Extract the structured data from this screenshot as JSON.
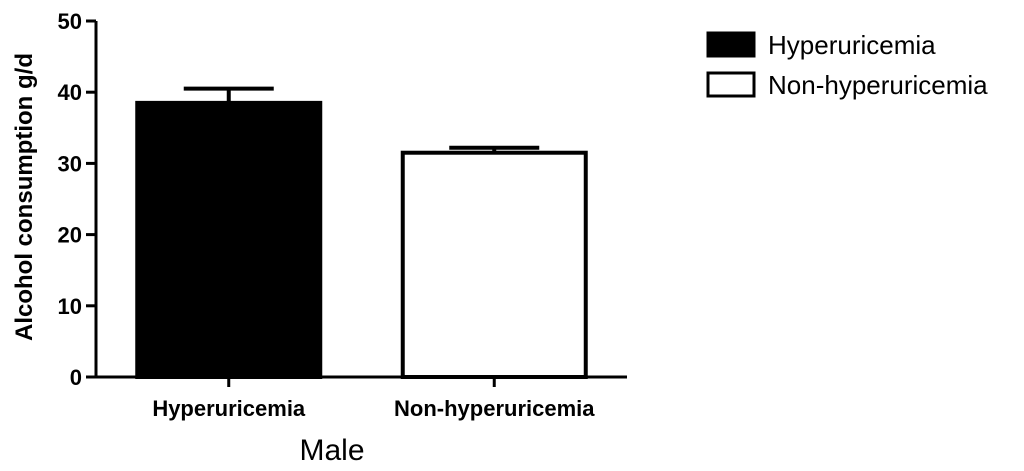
{
  "chart_data": {
    "type": "bar",
    "categories": [
      "Hyperuricemia",
      "Non-hyperuricemia"
    ],
    "values": [
      38.5,
      31.5
    ],
    "error": [
      2.0,
      0.7
    ],
    "fills": [
      "#000000",
      "#ffffff"
    ],
    "ylabel": "Alcohol consumption g/d",
    "xlabel": "Male",
    "ylim": [
      0,
      50
    ],
    "yticks": [
      0,
      10,
      20,
      30,
      40,
      50
    ],
    "legend": {
      "position": "top-right",
      "entries": [
        {
          "label": "Hyperuricemia",
          "fill": "#000000"
        },
        {
          "label": "Non-hyperuricemia",
          "fill": "#ffffff"
        }
      ]
    },
    "grid": false
  }
}
